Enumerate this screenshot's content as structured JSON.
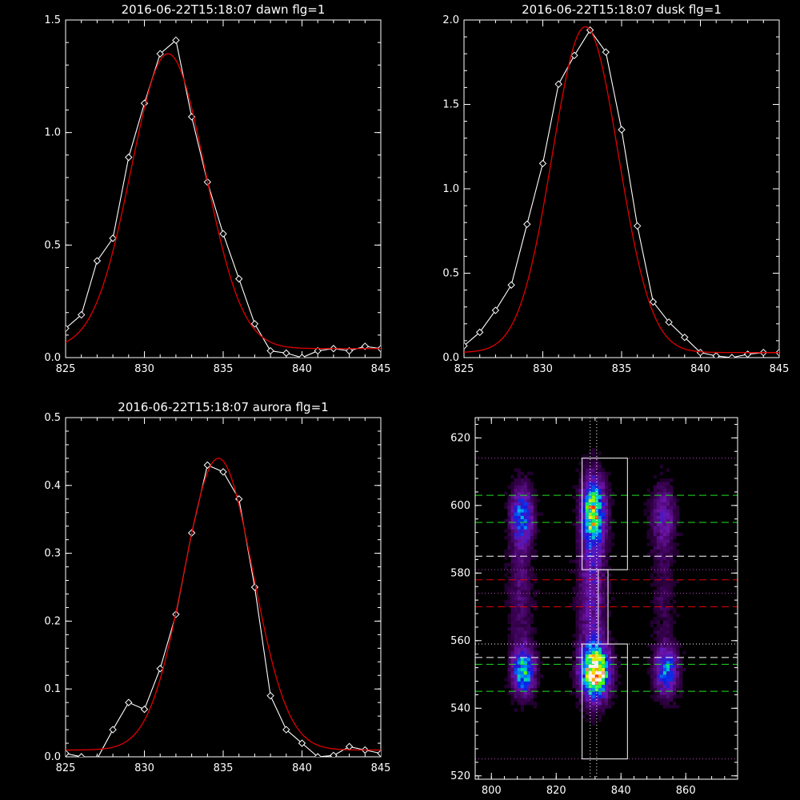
{
  "chart_data": [
    {
      "type": "line",
      "title": "2016-06-22T15:18:07 dawn flg=1",
      "xlim": [
        825,
        845
      ],
      "ylim": [
        0,
        1.5
      ],
      "xticks": [
        "825",
        "830",
        "835",
        "840",
        "845"
      ],
      "yticks": [
        "0.0",
        "0.5",
        "1.0",
        "1.5"
      ],
      "series": [
        {
          "color": "#ffffff",
          "marker": "diamond",
          "x": [
            825,
            826,
            827,
            828,
            829,
            830,
            831,
            832,
            833,
            834,
            835,
            836,
            837,
            838,
            839,
            840,
            841,
            842,
            843,
            844,
            845
          ],
          "y": [
            0.13,
            0.19,
            0.43,
            0.53,
            0.89,
            1.13,
            1.35,
            1.41,
            1.07,
            0.78,
            0.55,
            0.35,
            0.15,
            0.03,
            0.02,
            0.0,
            0.03,
            0.04,
            0.03,
            0.05,
            0.04
          ]
        },
        {
          "color": "#e00000",
          "fit": "gaussian",
          "center": 831.5,
          "amplitude": 1.31,
          "sigma": 2.35,
          "baseline": 0.04
        }
      ]
    },
    {
      "type": "line",
      "title": "2016-06-22T15:18:07 dusk flg=1",
      "xlim": [
        825,
        845
      ],
      "ylim": [
        0,
        2.0
      ],
      "xticks": [
        "825",
        "830",
        "835",
        "840",
        "845"
      ],
      "yticks": [
        "0.0",
        "0.5",
        "1.0",
        "1.5",
        "2.0"
      ],
      "series": [
        {
          "color": "#ffffff",
          "marker": "diamond",
          "x": [
            825,
            826,
            827,
            828,
            829,
            830,
            831,
            832,
            833,
            834,
            835,
            836,
            837,
            838,
            839,
            840,
            841,
            842,
            843,
            844,
            845
          ],
          "y": [
            0.07,
            0.15,
            0.28,
            0.43,
            0.79,
            1.15,
            1.62,
            1.79,
            1.94,
            1.81,
            1.35,
            0.78,
            0.33,
            0.21,
            0.12,
            0.03,
            0.01,
            0.0,
            0.02,
            0.03,
            0.03
          ]
        },
        {
          "color": "#e00000",
          "fit": "gaussian",
          "center": 832.7,
          "amplitude": 1.93,
          "sigma": 2.1,
          "baseline": 0.03
        }
      ]
    },
    {
      "type": "line",
      "title": "2016-06-22T15:18:07 aurora flg=1",
      "xlim": [
        825,
        845
      ],
      "ylim": [
        0,
        0.5
      ],
      "xticks": [
        "825",
        "830",
        "835",
        "840",
        "845"
      ],
      "yticks": [
        "0.0",
        "0.1",
        "0.2",
        "0.3",
        "0.4",
        "0.5"
      ],
      "series": [
        {
          "color": "#ffffff",
          "marker": "diamond",
          "x": [
            825,
            826,
            827,
            828,
            829,
            830,
            831,
            832,
            833,
            834,
            835,
            836,
            837,
            838,
            839,
            840,
            841,
            842,
            843,
            844,
            845
          ],
          "y": [
            0.005,
            0.0,
            -0.003,
            0.04,
            0.08,
            0.07,
            0.13,
            0.21,
            0.33,
            0.43,
            0.42,
            0.38,
            0.25,
            0.09,
            0.04,
            0.02,
            0.0,
            0.002,
            0.015,
            0.01,
            0.005
          ]
        },
        {
          "color": "#e00000",
          "fit": "gaussian",
          "center": 834.7,
          "amplitude": 0.43,
          "sigma": 2.2,
          "baseline": 0.01
        }
      ]
    },
    {
      "type": "heatmap",
      "title": "",
      "xlim": [
        795,
        876
      ],
      "ylim": [
        519,
        626
      ],
      "xticks": [
        "800",
        "820",
        "840",
        "860"
      ],
      "yticks": [
        "520",
        "540",
        "560",
        "580",
        "600",
        "620"
      ],
      "colormap": "rainbow",
      "emission_blobs": [
        {
          "x": 810,
          "y": 551,
          "sx": 2.2,
          "sy": 4.5,
          "intensity": 0.62
        },
        {
          "x": 809.5,
          "y": 597,
          "sx": 2.2,
          "sy": 5.5,
          "intensity": 0.45
        },
        {
          "x": 809,
          "y": 575,
          "sx": 2.5,
          "sy": 14,
          "intensity": 0.14
        },
        {
          "x": 832,
          "y": 551,
          "sx": 2.8,
          "sy": 5.2,
          "intensity": 1.0
        },
        {
          "x": 833.5,
          "y": 550,
          "sx": 1.2,
          "sy": 1.2,
          "intensity": 0.35
        },
        {
          "x": 831.5,
          "y": 598,
          "sx": 2.3,
          "sy": 6.5,
          "intensity": 0.72
        },
        {
          "x": 831,
          "y": 575,
          "sx": 2.8,
          "sy": 16,
          "intensity": 0.24
        },
        {
          "x": 854,
          "y": 551,
          "sx": 2.3,
          "sy": 4.5,
          "intensity": 0.48
        },
        {
          "x": 853,
          "y": 597,
          "sx": 2.5,
          "sy": 6,
          "intensity": 0.22
        },
        {
          "x": 853,
          "y": 575,
          "sx": 2.5,
          "sy": 14,
          "intensity": 0.09
        }
      ],
      "lines": {
        "vertical_dotted_x": [
          830.5,
          832.5
        ],
        "magenta_dotted_y": [
          525,
          574,
          581,
          614
        ],
        "white_dotted_y": [
          559
        ],
        "green_dashed_y": [
          545,
          553,
          595,
          603
        ],
        "white_dashed_y": [
          555,
          585
        ],
        "red_dashed_y": [
          570,
          578
        ]
      },
      "boxes": [
        {
          "x0": 828,
          "x1": 842,
          "y0": 525,
          "y1": 559
        },
        {
          "x0": 828,
          "x1": 842,
          "y0": 581,
          "y1": 614
        },
        {
          "x0": 833,
          "x1": 836,
          "y0": 559,
          "y1": 581
        }
      ]
    }
  ]
}
